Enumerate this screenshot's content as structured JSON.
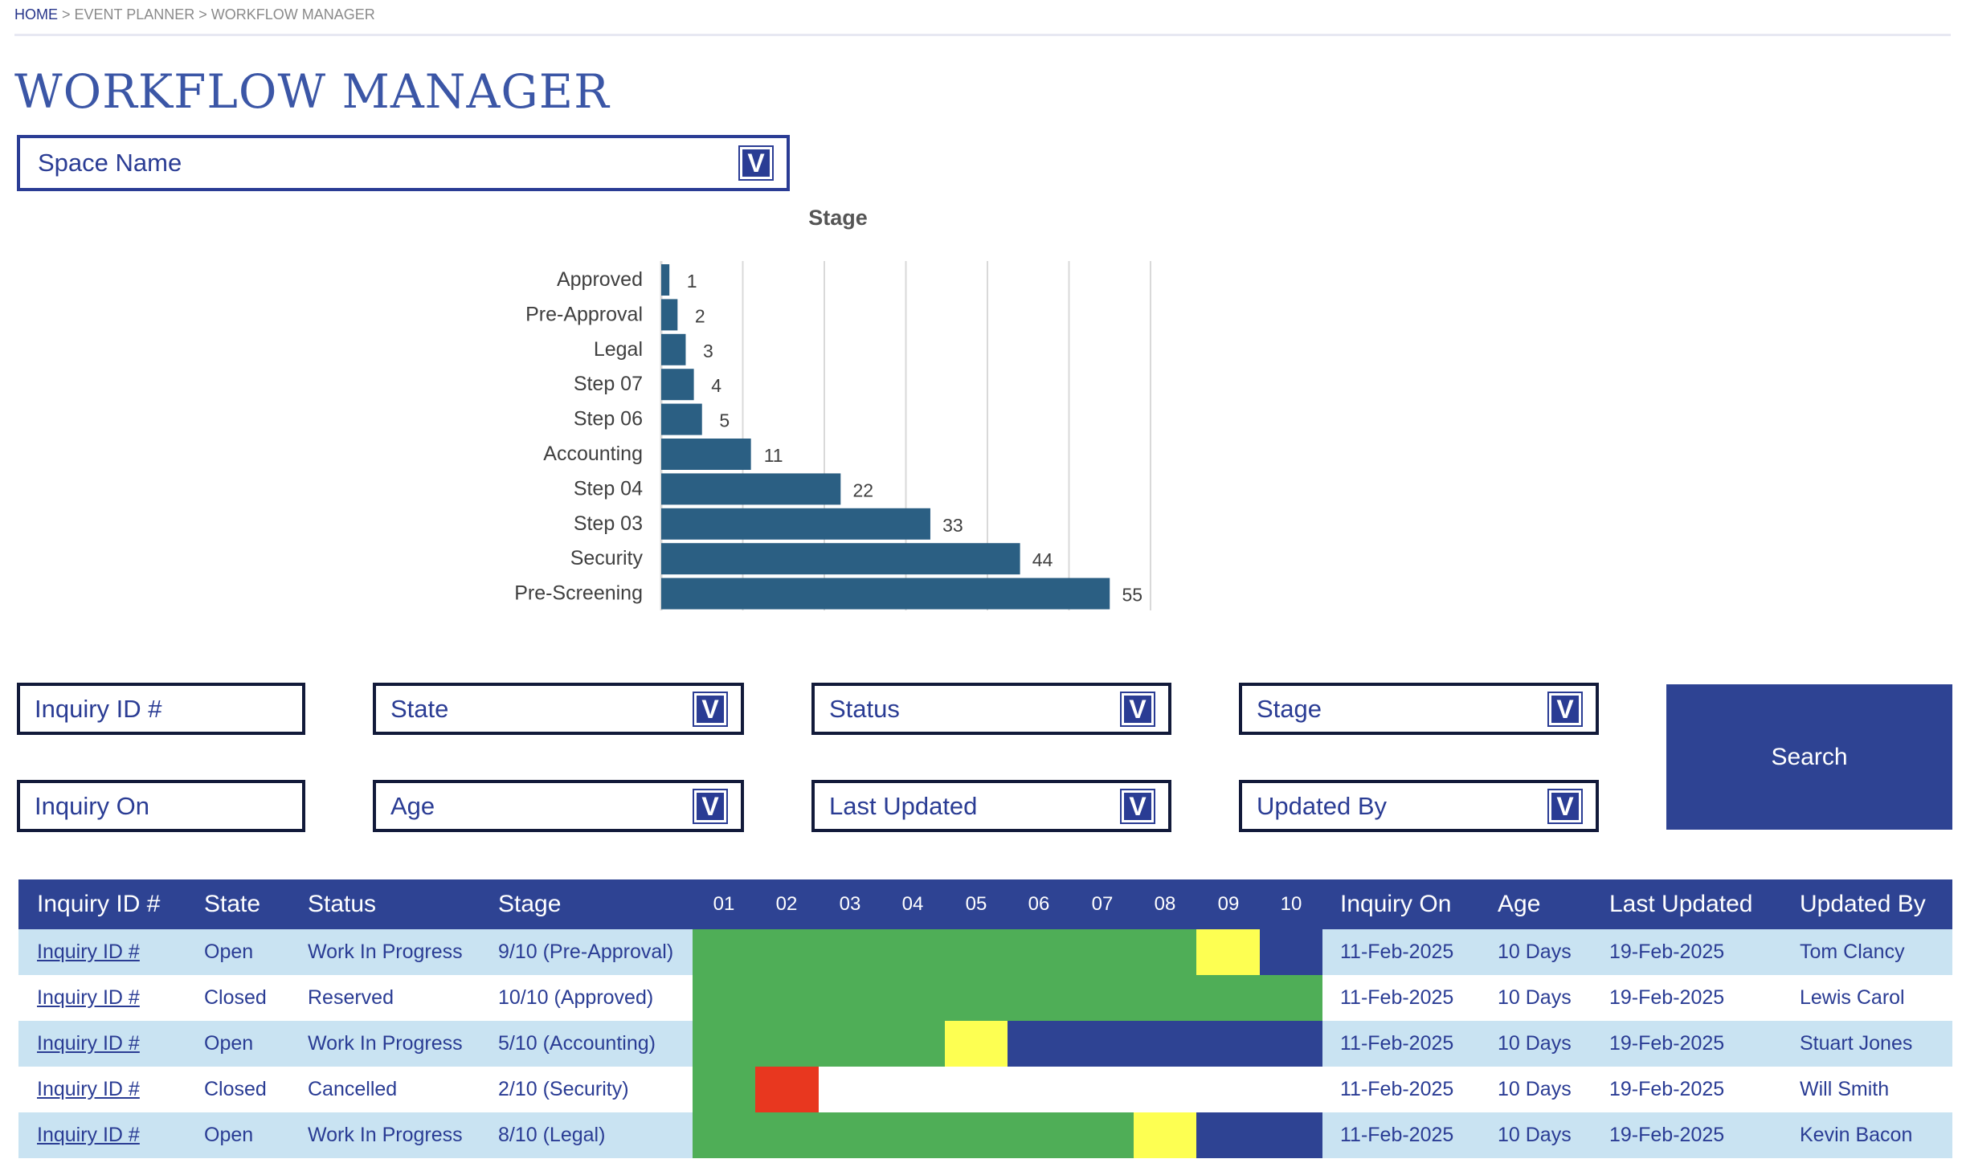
{
  "breadcrumb": {
    "home": "HOME",
    "sep1": " > ",
    "planner": "EVENT PLANNER",
    "sep2": " > ",
    "current": "WORKFLOW MANAGER"
  },
  "page_title": "WORKFLOW MANAGER",
  "space_name": {
    "label": "Space Name",
    "icon": "chevron-down-icon"
  },
  "chart_data": {
    "type": "bar",
    "orientation": "horizontal",
    "title": "Stage",
    "categories": [
      "Approved",
      "Pre-Approval",
      "Legal",
      "Step 07",
      "Step 06",
      "Accounting",
      "Step 04",
      "Step 03",
      "Security",
      "Pre-Screening"
    ],
    "values": [
      1,
      2,
      3,
      4,
      5,
      11,
      22,
      33,
      44,
      55
    ],
    "xlim": [
      0,
      60
    ],
    "grid": true,
    "data_labels": true,
    "color": "#2b5f83"
  },
  "filters": {
    "inquiry_id": "Inquiry ID #",
    "state": "State",
    "status": "Status",
    "stage": "Stage",
    "inquiry_on": "Inquiry On",
    "age": "Age",
    "last_updated": "Last Updated",
    "updated_by": "Updated By",
    "search": "Search"
  },
  "colors": {
    "header": "#2e4393",
    "row_alt": "#c9e3f2",
    "done": "#4fae57",
    "current": "#fdff52",
    "pending": "#2e4393",
    "cancelled": "#e8371f",
    "empty": "#ffffff"
  },
  "table": {
    "columns": [
      "Inquiry ID #",
      "State",
      "Status",
      "Stage",
      "Inquiry On",
      "Age",
      "Last Updated",
      "Updated By"
    ],
    "steps": [
      "01",
      "02",
      "03",
      "04",
      "05",
      "06",
      "07",
      "08",
      "09",
      "10"
    ],
    "rows": [
      {
        "id": "Inquiry ID #",
        "state": "Open",
        "status": "Work In Progress",
        "stage": "9/10 (Pre-Approval)",
        "progress": [
          "done",
          "done",
          "done",
          "done",
          "done",
          "done",
          "done",
          "done",
          "current",
          "pending"
        ],
        "inquiry_on": "11-Feb-2025",
        "age": "10 Days",
        "last_updated": "19-Feb-2025",
        "updated_by": "Tom Clancy"
      },
      {
        "id": "Inquiry ID #",
        "state": "Closed",
        "status": "Reserved",
        "stage": "10/10 (Approved)",
        "progress": [
          "done",
          "done",
          "done",
          "done",
          "done",
          "done",
          "done",
          "done",
          "done",
          "done"
        ],
        "inquiry_on": "11-Feb-2025",
        "age": "10 Days",
        "last_updated": "19-Feb-2025",
        "updated_by": "Lewis Carol"
      },
      {
        "id": "Inquiry ID #",
        "state": "Open",
        "status": "Work In Progress",
        "stage": "5/10 (Accounting)",
        "progress": [
          "done",
          "done",
          "done",
          "done",
          "current",
          "pending",
          "pending",
          "pending",
          "pending",
          "pending"
        ],
        "inquiry_on": "11-Feb-2025",
        "age": "10 Days",
        "last_updated": "19-Feb-2025",
        "updated_by": "Stuart Jones"
      },
      {
        "id": "Inquiry ID #",
        "state": "Closed",
        "status": "Cancelled",
        "stage": "2/10 (Security)",
        "progress": [
          "done",
          "cancelled",
          "empty",
          "empty",
          "empty",
          "empty",
          "empty",
          "empty",
          "empty",
          "empty"
        ],
        "inquiry_on": "11-Feb-2025",
        "age": "10 Days",
        "last_updated": "19-Feb-2025",
        "updated_by": "Will Smith"
      },
      {
        "id": "Inquiry ID #",
        "state": "Open",
        "status": "Work In Progress",
        "stage": "8/10 (Legal)",
        "progress": [
          "done",
          "done",
          "done",
          "done",
          "done",
          "done",
          "done",
          "current",
          "pending",
          "pending"
        ],
        "inquiry_on": "11-Feb-2025",
        "age": "10 Days",
        "last_updated": "19-Feb-2025",
        "updated_by": "Kevin Bacon"
      }
    ]
  }
}
